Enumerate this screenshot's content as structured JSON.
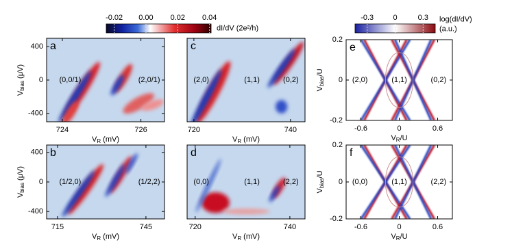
{
  "chart_data": [
    {
      "type": "colorbar",
      "clim": [
        -0.025,
        0.041
      ],
      "cticks": [
        -0.02,
        {
          "value": 0,
          "label": "0.00"
        },
        0.02,
        0.04
      ],
      "label": [
        "dI/dV (2e²/h)"
      ]
    },
    {
      "type": "colorbar",
      "clim": [
        -0.43,
        0.43
      ],
      "cticks": [
        -0.3,
        0,
        0.3
      ],
      "label": [
        "log(dI/dV)",
        "(a.u.)"
      ]
    },
    {
      "type": "heatmap",
      "label": "a",
      "xlim": [
        723.6,
        726.6
      ],
      "xticks": [
        724,
        726
      ],
      "ylim": [
        -500,
        500
      ],
      "yticks": [
        400,
        0,
        -400
      ],
      "xlabel": {
        "main": "V",
        "sub": "R",
        "rest": " (mV)"
      },
      "ylabel": {
        "main": "V",
        "sub": "bias",
        "rest": " (μV)"
      },
      "annotations": [
        "(0,0/1)",
        "(2,0/1)"
      ]
    },
    {
      "type": "heatmap",
      "label": "b",
      "xlim": [
        711.3,
        751.3
      ],
      "xticks": [
        715,
        745
      ],
      "ylim": [
        -500,
        500
      ],
      "yticks": [
        400,
        0,
        -400
      ],
      "xlabel": {
        "main": "V",
        "sub": "R",
        "rest": " (mV)"
      },
      "ylabel": {
        "main": "V",
        "sub": "bias",
        "rest": " (μV)"
      },
      "annotations": [
        "(1/2,0)",
        "(1/2,2)"
      ]
    },
    {
      "type": "heatmap",
      "label": "c",
      "xlim": [
        718.6,
        743
      ],
      "xticks": [
        720,
        740
      ],
      "ylim": [
        -500,
        500
      ],
      "xlabel": {
        "main": "V",
        "sub": "R",
        "rest": " (mV)"
      },
      "annotations": [
        "(2,0)",
        "(1,1)",
        "(0,2)"
      ]
    },
    {
      "type": "heatmap",
      "label": "d",
      "xlim": [
        718.3,
        743.2
      ],
      "xticks": [
        720,
        740
      ],
      "ylim": [
        -500,
        500
      ],
      "xlabel": {
        "main": "V",
        "sub": "R",
        "rest": " (mV)"
      },
      "annotations": [
        "(0,0)",
        "(1,1)",
        "(2,2)"
      ]
    },
    {
      "type": "theory",
      "label": "e",
      "xlim": [
        -0.83,
        0.83
      ],
      "xticks": [
        -0.6,
        0,
        0.6
      ],
      "ylim": [
        -0.2,
        0.2
      ],
      "yticks": [
        0.2,
        0,
        -0.2
      ],
      "xlabel": {
        "main": "V",
        "sub": "R",
        "rest": "/U"
      },
      "ylabel": {
        "main": "V",
        "sub": "bias",
        "rest": "/U"
      },
      "annotations": [
        "(2,0)",
        "(1,1)",
        "(0,2)"
      ]
    },
    {
      "type": "theory",
      "label": "f",
      "xlim": [
        -0.83,
        0.83
      ],
      "xticks": [
        -0.6,
        0,
        0.6
      ],
      "ylim": [
        -0.2,
        0.2
      ],
      "yticks": [
        0.2,
        0,
        -0.2
      ],
      "xlabel": {
        "main": "V",
        "sub": "R",
        "rest": "/U"
      },
      "ylabel": {
        "main": "V",
        "sub": "bias",
        "rest": "/U"
      },
      "annotations": [
        "(0,0)",
        "(1,1)",
        "(2,2)"
      ]
    }
  ]
}
